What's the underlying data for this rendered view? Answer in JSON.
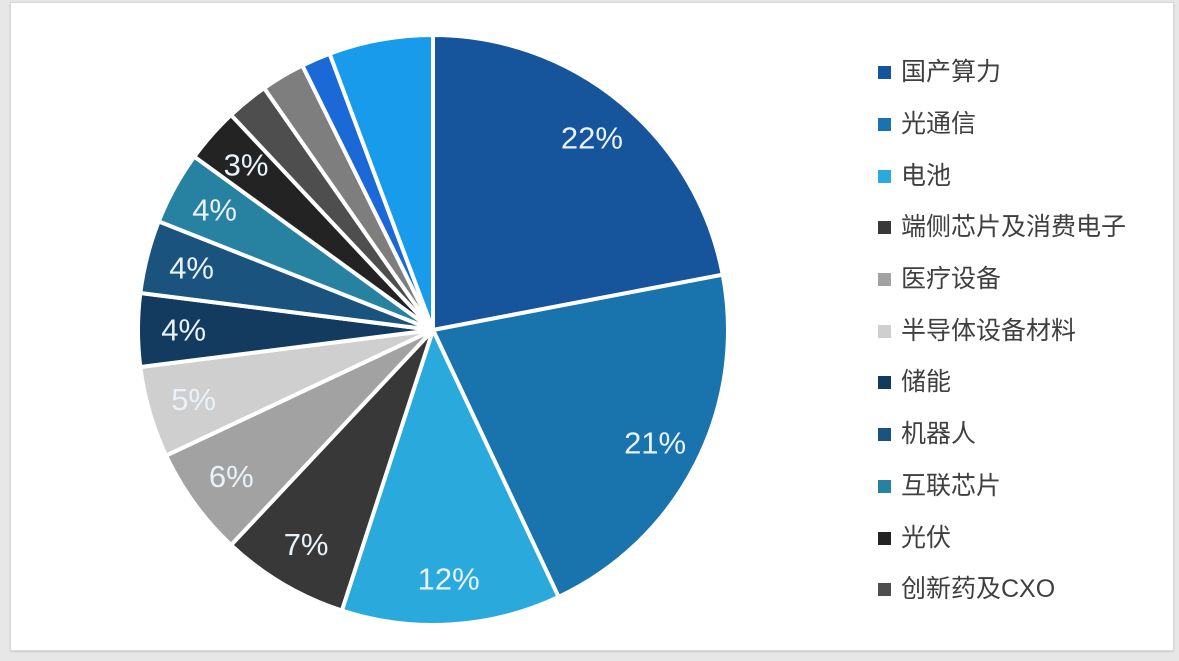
{
  "chart_data": {
    "type": "pie",
    "title": "",
    "start_angle_deg": 0,
    "direction": "clockwise",
    "legend_position": "right",
    "legend_visible_items": 11,
    "data_label_color": "#e9f1f9",
    "legend_text_color": "#3f3f3f",
    "slice_gap_color": "#ffffff",
    "slices": [
      {
        "name": "国产算力",
        "value": 22,
        "label": "22%",
        "color": "#16549c"
      },
      {
        "name": "光通信",
        "value": 21,
        "label": "21%",
        "color": "#1973ac"
      },
      {
        "name": "电池",
        "value": 12,
        "label": "12%",
        "color": "#2aaadc"
      },
      {
        "name": "端侧芯片及消费电子",
        "value": 7,
        "label": "7%",
        "color": "#383838"
      },
      {
        "name": "医疗设备",
        "value": 6,
        "label": "6%",
        "color": "#a2a2a2"
      },
      {
        "name": "半导体设备材料",
        "value": 5,
        "label": "5%",
        "color": "#cfcfcf"
      },
      {
        "name": "储能",
        "value": 4,
        "label": "4%",
        "color": "#133a5f"
      },
      {
        "name": "机器人",
        "value": 4,
        "label": "4%",
        "color": "#1a547e"
      },
      {
        "name": "互联芯片",
        "value": 4,
        "label": "4%",
        "color": "#2781a0"
      },
      {
        "name": "光伏",
        "value": 3,
        "label": "3%",
        "color": "#232323"
      },
      {
        "name": "创新药及CXO",
        "value": 2.3,
        "label": "",
        "color": "#4e4e4e"
      },
      {
        "name": "",
        "value": 2.4,
        "label": "",
        "color": "#7e7e7e"
      },
      {
        "name": "",
        "value": 1.6,
        "label": "",
        "color": "#1b69d7"
      },
      {
        "name": "",
        "value": 5.7,
        "label": "",
        "color": "#189beb"
      }
    ]
  }
}
